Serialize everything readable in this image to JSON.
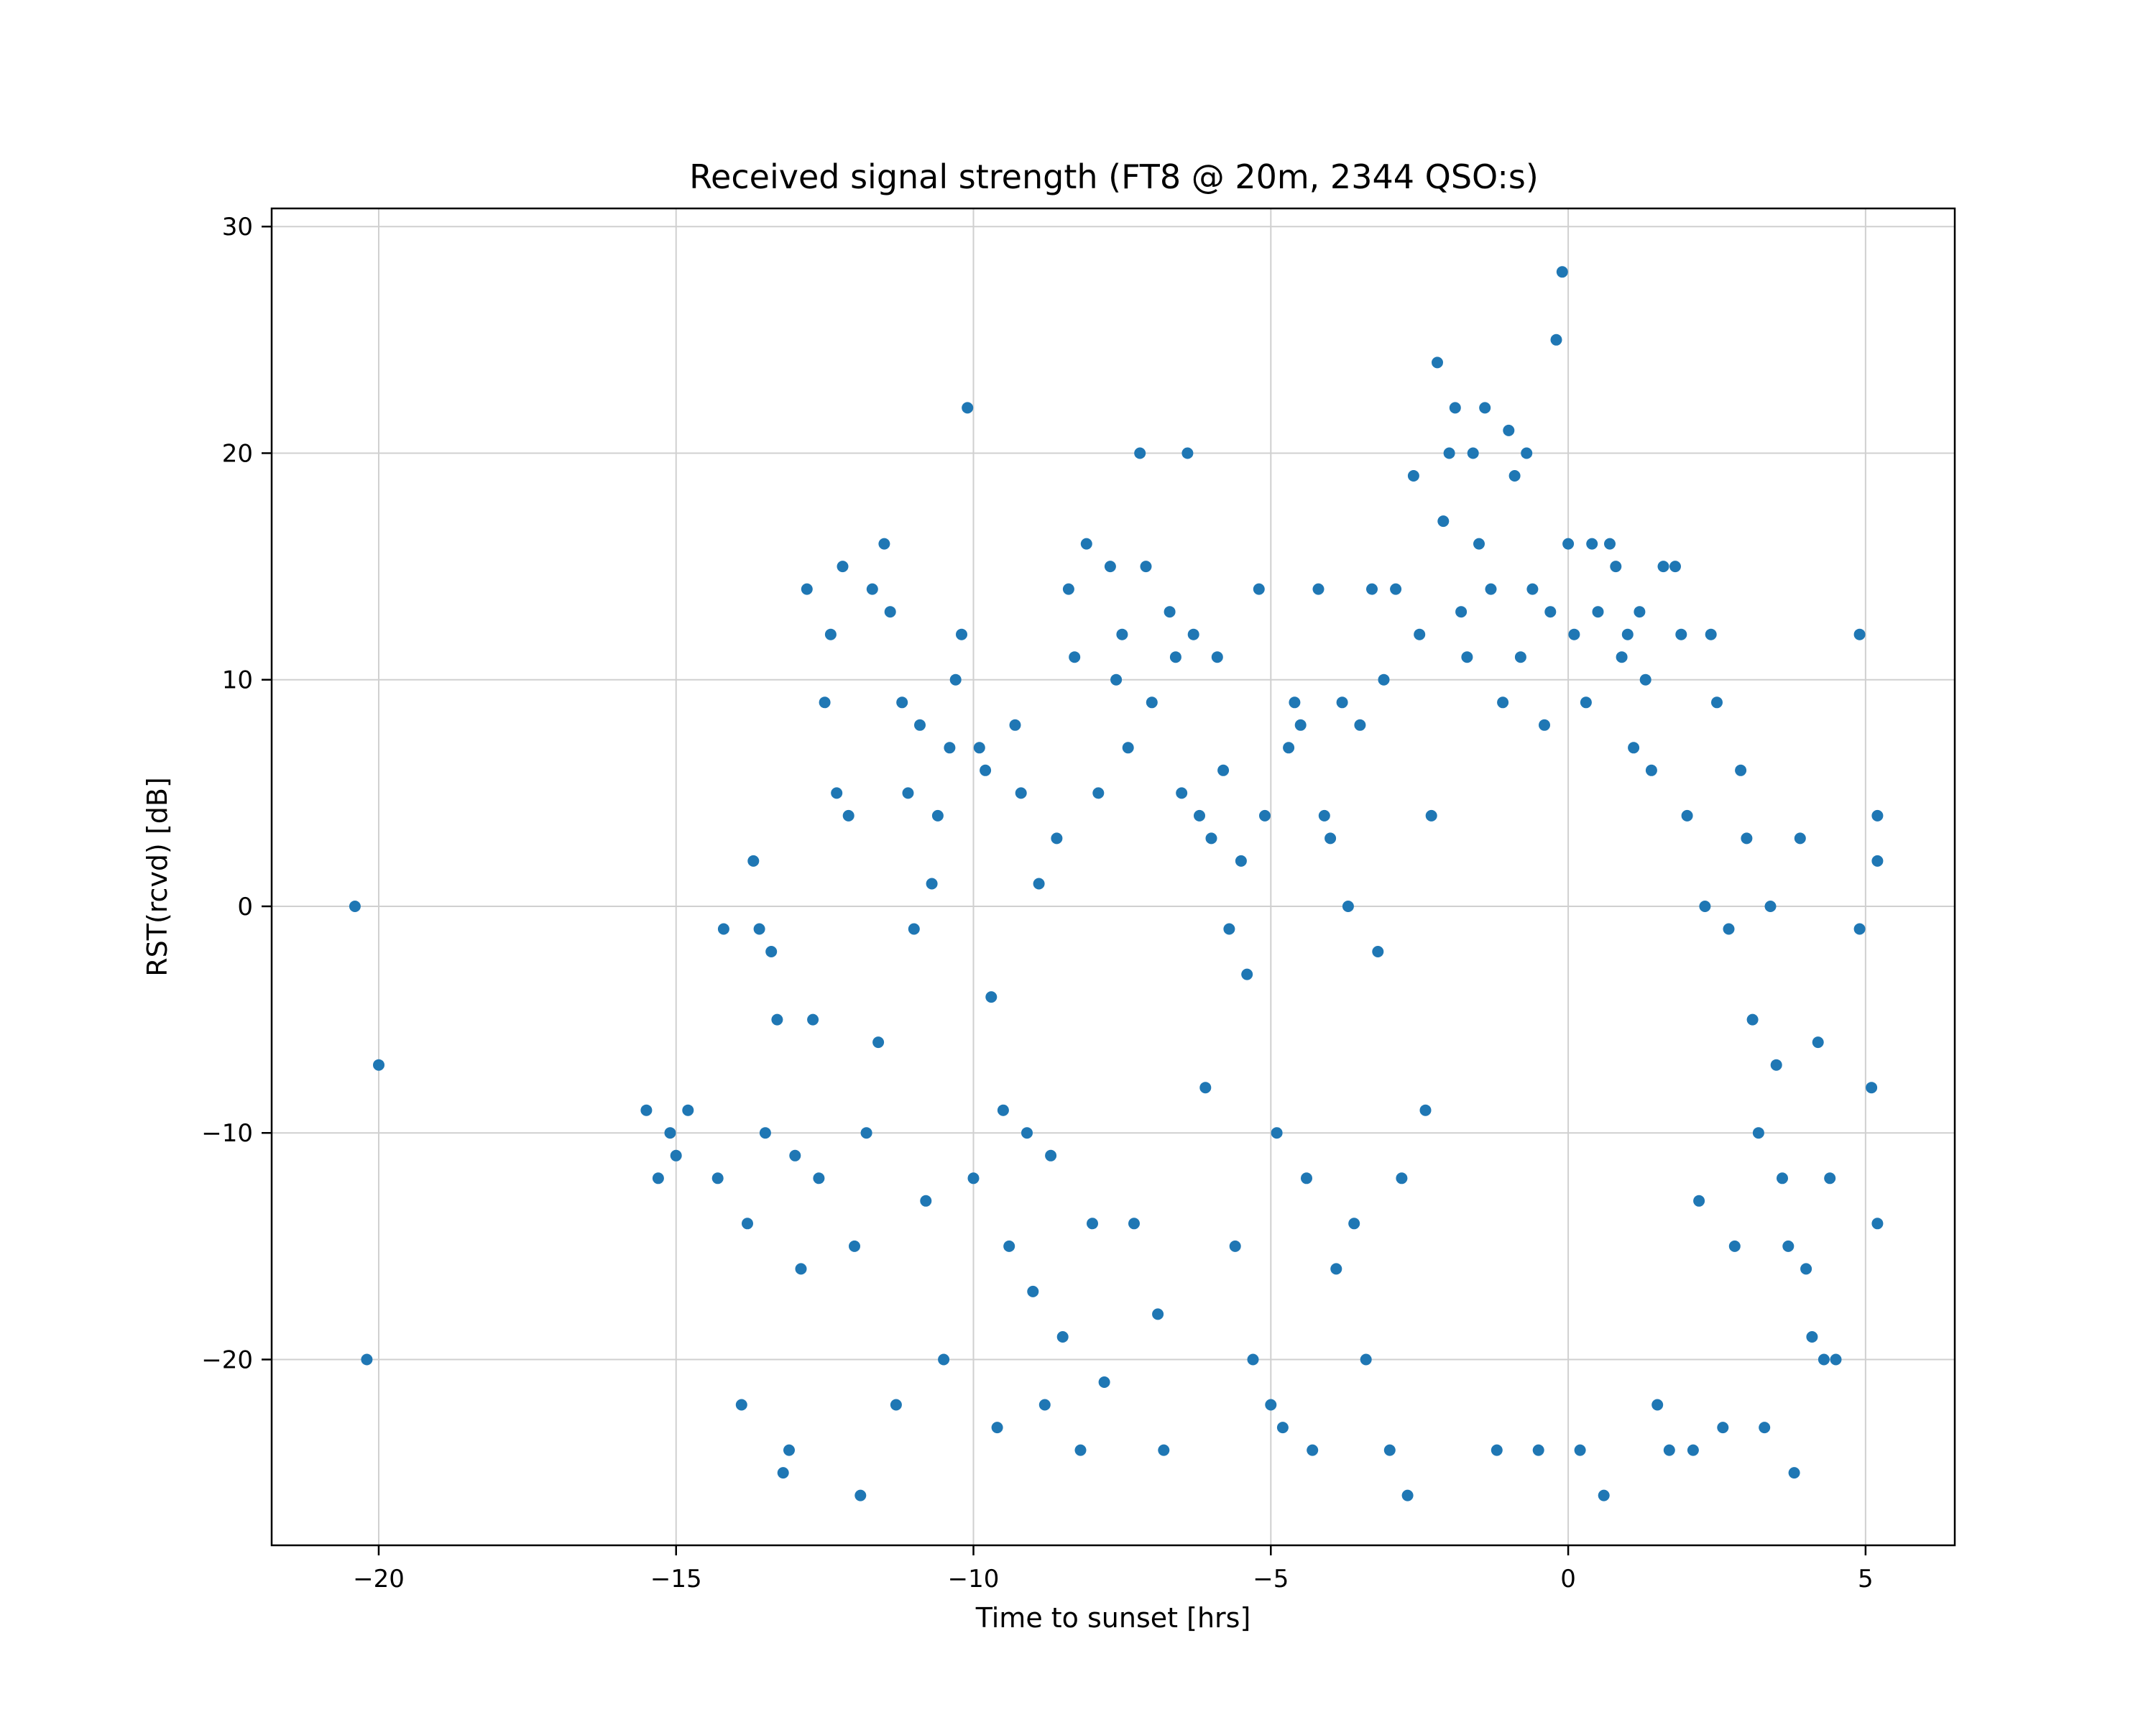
{
  "chart_data": {
    "type": "scatter",
    "title": "Received signal strength (FT8 @ 20m, 2344 QSO:s)",
    "xlabel": "Time to sunset [hrs]",
    "ylabel": "RST(rcvd) [dB]",
    "xlim": [
      -21.8,
      6.5
    ],
    "ylim": [
      -28.2,
      30.8
    ],
    "xticks": [
      -20,
      -15,
      -10,
      -5,
      0,
      5
    ],
    "yticks": [
      -20,
      -10,
      0,
      10,
      20,
      30
    ],
    "xtick_labels": [
      "−20",
      "−15",
      "−10",
      "−5",
      "0",
      "5"
    ],
    "ytick_labels": [
      "−20",
      "−10",
      "0",
      "10",
      "20",
      "30"
    ],
    "grid": true,
    "color": "#1f77b4",
    "series": [
      {
        "points": [
          [
            -20.4,
            0
          ],
          [
            -20.2,
            -20
          ],
          [
            -20.0,
            -7
          ],
          [
            -15.5,
            -9
          ],
          [
            -15.3,
            -12
          ],
          [
            -15.1,
            -10
          ],
          [
            -15.0,
            -11
          ],
          [
            -14.8,
            -9
          ],
          [
            -14.3,
            -12
          ],
          [
            -14.2,
            -1
          ],
          [
            -13.9,
            -22
          ],
          [
            -13.8,
            -14
          ],
          [
            -13.7,
            2
          ],
          [
            -13.6,
            -1
          ],
          [
            -13.5,
            -10
          ],
          [
            -13.4,
            -2
          ],
          [
            -13.3,
            -5
          ],
          [
            -13.2,
            -25
          ],
          [
            -13.1,
            -24
          ],
          [
            -13.0,
            -11
          ],
          [
            -12.9,
            -16
          ],
          [
            -12.8,
            14
          ],
          [
            -12.7,
            -5
          ],
          [
            -12.6,
            -12
          ],
          [
            -12.5,
            9
          ],
          [
            -12.4,
            12
          ],
          [
            -12.3,
            5
          ],
          [
            -12.2,
            15
          ],
          [
            -12.1,
            4
          ],
          [
            -12.0,
            -15
          ],
          [
            -11.9,
            -26
          ],
          [
            -11.8,
            -10
          ],
          [
            -11.7,
            14
          ],
          [
            -11.6,
            -6
          ],
          [
            -11.5,
            16
          ],
          [
            -11.4,
            13
          ],
          [
            -11.3,
            -22
          ],
          [
            -11.2,
            9
          ],
          [
            -11.1,
            5
          ],
          [
            -11.0,
            -1
          ],
          [
            -10.9,
            8
          ],
          [
            -10.8,
            -13
          ],
          [
            -10.7,
            1
          ],
          [
            -10.6,
            4
          ],
          [
            -10.5,
            -20
          ],
          [
            -10.4,
            7
          ],
          [
            -10.3,
            10
          ],
          [
            -10.2,
            12
          ],
          [
            -10.1,
            22
          ],
          [
            -10.0,
            -12
          ],
          [
            -9.9,
            7
          ],
          [
            -9.8,
            6
          ],
          [
            -9.7,
            -4
          ],
          [
            -9.6,
            -23
          ],
          [
            -9.5,
            -9
          ],
          [
            -9.4,
            -15
          ],
          [
            -9.3,
            8
          ],
          [
            -9.2,
            5
          ],
          [
            -9.1,
            -10
          ],
          [
            -9.0,
            -17
          ],
          [
            -8.9,
            1
          ],
          [
            -8.8,
            -22
          ],
          [
            -8.7,
            -11
          ],
          [
            -8.6,
            3
          ],
          [
            -8.5,
            -19
          ],
          [
            -8.4,
            14
          ],
          [
            -8.3,
            11
          ],
          [
            -8.2,
            -24
          ],
          [
            -8.1,
            16
          ],
          [
            -8.0,
            -14
          ],
          [
            -7.9,
            5
          ],
          [
            -7.8,
            -21
          ],
          [
            -7.7,
            15
          ],
          [
            -7.6,
            10
          ],
          [
            -7.5,
            12
          ],
          [
            -7.4,
            7
          ],
          [
            -7.3,
            -14
          ],
          [
            -7.2,
            20
          ],
          [
            -7.1,
            15
          ],
          [
            -7.0,
            9
          ],
          [
            -6.9,
            -18
          ],
          [
            -6.8,
            -24
          ],
          [
            -6.7,
            13
          ],
          [
            -6.6,
            11
          ],
          [
            -6.5,
            5
          ],
          [
            -6.4,
            20
          ],
          [
            -6.3,
            12
          ],
          [
            -6.2,
            4
          ],
          [
            -6.1,
            -8
          ],
          [
            -6.0,
            3
          ],
          [
            -5.9,
            11
          ],
          [
            -5.8,
            6
          ],
          [
            -5.7,
            -1
          ],
          [
            -5.6,
            -15
          ],
          [
            -5.5,
            2
          ],
          [
            -5.4,
            -3
          ],
          [
            -5.3,
            -20
          ],
          [
            -5.2,
            14
          ],
          [
            -5.1,
            4
          ],
          [
            -5.0,
            -22
          ],
          [
            -4.9,
            -10
          ],
          [
            -4.8,
            -23
          ],
          [
            -4.7,
            7
          ],
          [
            -4.6,
            9
          ],
          [
            -4.5,
            8
          ],
          [
            -4.4,
            -12
          ],
          [
            -4.3,
            -24
          ],
          [
            -4.2,
            14
          ],
          [
            -4.1,
            4
          ],
          [
            -4.0,
            3
          ],
          [
            -3.9,
            -16
          ],
          [
            -3.8,
            9
          ],
          [
            -3.7,
            0
          ],
          [
            -3.6,
            -14
          ],
          [
            -3.5,
            8
          ],
          [
            -3.4,
            -20
          ],
          [
            -3.3,
            14
          ],
          [
            -3.2,
            -2
          ],
          [
            -3.1,
            10
          ],
          [
            -3.0,
            -24
          ],
          [
            -2.9,
            14
          ],
          [
            -2.8,
            -12
          ],
          [
            -2.7,
            -26
          ],
          [
            -2.6,
            19
          ],
          [
            -2.5,
            12
          ],
          [
            -2.4,
            -9
          ],
          [
            -2.3,
            4
          ],
          [
            -2.2,
            24
          ],
          [
            -2.1,
            17
          ],
          [
            -2.0,
            20
          ],
          [
            -1.9,
            22
          ],
          [
            -1.8,
            13
          ],
          [
            -1.7,
            11
          ],
          [
            -1.6,
            20
          ],
          [
            -1.5,
            16
          ],
          [
            -1.4,
            22
          ],
          [
            -1.3,
            14
          ],
          [
            -1.2,
            -24
          ],
          [
            -1.1,
            9
          ],
          [
            -1.0,
            21
          ],
          [
            -0.9,
            19
          ],
          [
            -0.8,
            11
          ],
          [
            -0.7,
            20
          ],
          [
            -0.6,
            14
          ],
          [
            -0.5,
            -24
          ],
          [
            -0.4,
            8
          ],
          [
            -0.3,
            13
          ],
          [
            -0.2,
            25
          ],
          [
            -0.1,
            28
          ],
          [
            0.0,
            16
          ],
          [
            0.1,
            12
          ],
          [
            0.2,
            -24
          ],
          [
            0.3,
            9
          ],
          [
            0.4,
            16
          ],
          [
            0.5,
            13
          ],
          [
            0.6,
            -26
          ],
          [
            0.7,
            16
          ],
          [
            0.8,
            15
          ],
          [
            0.9,
            11
          ],
          [
            1.0,
            12
          ],
          [
            1.1,
            7
          ],
          [
            1.2,
            13
          ],
          [
            1.3,
            10
          ],
          [
            1.4,
            6
          ],
          [
            1.5,
            -22
          ],
          [
            1.6,
            15
          ],
          [
            1.7,
            -24
          ],
          [
            1.8,
            15
          ],
          [
            1.9,
            12
          ],
          [
            2.0,
            4
          ],
          [
            2.1,
            -24
          ],
          [
            2.2,
            -13
          ],
          [
            2.3,
            0
          ],
          [
            2.4,
            12
          ],
          [
            2.5,
            9
          ],
          [
            2.6,
            -23
          ],
          [
            2.7,
            -1
          ],
          [
            2.8,
            -15
          ],
          [
            2.9,
            6
          ],
          [
            3.0,
            3
          ],
          [
            3.1,
            -5
          ],
          [
            3.2,
            -10
          ],
          [
            3.3,
            -23
          ],
          [
            3.4,
            0
          ],
          [
            3.5,
            -7
          ],
          [
            3.6,
            -12
          ],
          [
            3.7,
            -15
          ],
          [
            3.8,
            -25
          ],
          [
            3.9,
            3
          ],
          [
            4.0,
            -16
          ],
          [
            4.1,
            -19
          ],
          [
            4.2,
            -6
          ],
          [
            4.3,
            -20
          ],
          [
            4.4,
            -12
          ],
          [
            4.5,
            -20
          ],
          [
            4.9,
            12
          ],
          [
            4.9,
            -1
          ],
          [
            5.1,
            -8
          ],
          [
            5.2,
            2
          ],
          [
            5.2,
            4
          ],
          [
            5.2,
            -14
          ]
        ]
      }
    ]
  }
}
